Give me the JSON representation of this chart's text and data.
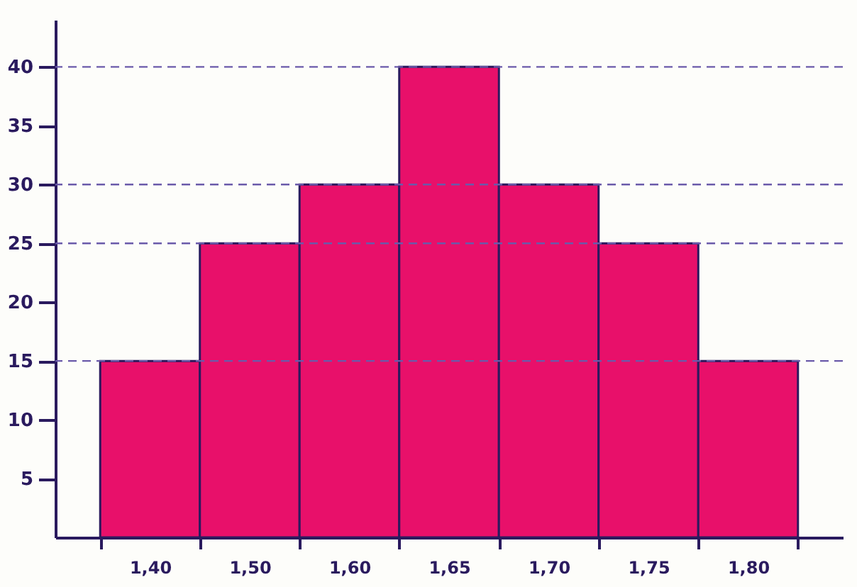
{
  "chart_data": {
    "type": "bar",
    "categories": [
      "1,40",
      "1,50",
      "1,60",
      "1,65",
      "1,70",
      "1,75",
      "1,80"
    ],
    "values": [
      15,
      25,
      30,
      40,
      30,
      25,
      15
    ],
    "color": "#e8106a",
    "ylim": [
      0,
      44
    ],
    "yticks": [
      5,
      10,
      15,
      20,
      25,
      30,
      35,
      40
    ],
    "grid": false,
    "ref_lines": [
      {
        "axis": "y",
        "value": 15,
        "color": "#6a5aaa",
        "line_style": "dashed"
      },
      {
        "axis": "y",
        "value": 25,
        "color": "#6a5aaa",
        "line_style": "dashed"
      },
      {
        "axis": "y",
        "value": 30,
        "color": "#6a5aaa",
        "line_style": "dashed"
      },
      {
        "axis": "y",
        "value": 40,
        "color": "#6a5aaa",
        "line_style": "dashed"
      }
    ]
  }
}
